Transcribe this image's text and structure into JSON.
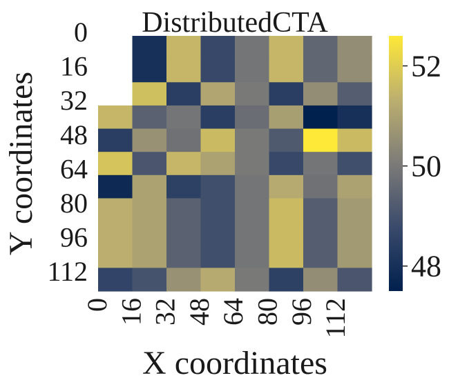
{
  "chart_data": {
    "type": "heatmap",
    "title": "DistributedCTA",
    "xlabel": "X coordinates",
    "ylabel": "Y coordinates",
    "x_ticks": [
      "0",
      "16",
      "32",
      "48",
      "64",
      "80",
      "96",
      "112"
    ],
    "y_ticks": [
      "0",
      "16",
      "32",
      "48",
      "64",
      "80",
      "96",
      "112"
    ],
    "colormap": "cividis",
    "colorbar_ticks": [
      "48",
      "50",
      "52"
    ],
    "vmin": 47.5,
    "vmax": 52.6,
    "n_cols": 8,
    "n_rows": 11,
    "values": [
      [
        null,
        48.0,
        51.5,
        48.7,
        49.9,
        51.5,
        49.5,
        50.5
      ],
      [
        null,
        48.0,
        51.5,
        48.7,
        49.9,
        51.5,
        49.5,
        50.5
      ],
      [
        null,
        51.7,
        48.4,
        51.1,
        50.0,
        48.4,
        50.5,
        49.3
      ],
      [
        51.5,
        49.4,
        49.9,
        48.4,
        49.7,
        50.9,
        47.5,
        48.0
      ],
      [
        48.4,
        50.6,
        49.8,
        51.6,
        50.0,
        49.2,
        52.6,
        51.6
      ],
      [
        51.8,
        49.1,
        51.5,
        51.0,
        50.0,
        48.7,
        49.9,
        48.9
      ],
      [
        47.8,
        51.0,
        48.5,
        48.9,
        49.9,
        51.2,
        49.8,
        51.0
      ],
      [
        51.3,
        51.0,
        49.4,
        48.9,
        49.9,
        51.6,
        49.3,
        50.8
      ],
      [
        51.3,
        51.0,
        49.4,
        48.9,
        49.9,
        51.6,
        49.3,
        50.8
      ],
      [
        51.3,
        51.0,
        49.4,
        48.9,
        49.9,
        51.6,
        49.3,
        50.8
      ],
      [
        48.6,
        49.0,
        50.6,
        51.2,
        50.0,
        48.5,
        50.5,
        49.1
      ]
    ]
  }
}
